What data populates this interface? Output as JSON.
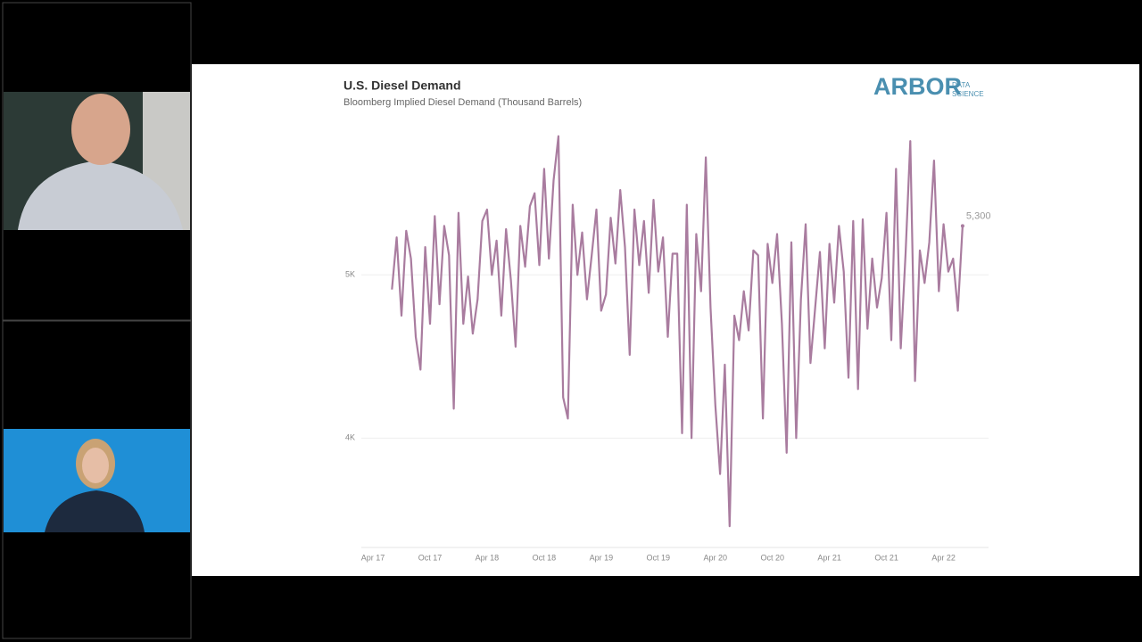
{
  "logo": {
    "name": "ARBOR",
    "line1": "DATA",
    "line2": "SCIENCE"
  },
  "chart_data": {
    "type": "line",
    "title": "U.S. Diesel Demand",
    "subtitle": "Bloomberg Implied Diesel Demand (Thousand Barrels)",
    "categories": [
      "Apr 17",
      null,
      null,
      null,
      null,
      null,
      null,
      null,
      null,
      null,
      null,
      null,
      "Oct 17",
      null,
      null,
      null,
      null,
      null,
      null,
      null,
      null,
      null,
      null,
      null,
      "Apr 18",
      null,
      null,
      null,
      null,
      null,
      null,
      null,
      null,
      null,
      null,
      null,
      "Oct 18",
      null,
      null,
      null,
      null,
      null,
      null,
      null,
      null,
      null,
      null,
      null,
      "Apr 19",
      null,
      null,
      null,
      null,
      null,
      null,
      null,
      null,
      null,
      null,
      null,
      "Oct 19",
      null,
      null,
      null,
      null,
      null,
      null,
      null,
      null,
      null,
      null,
      null,
      "Apr 20",
      null,
      null,
      null,
      null,
      null,
      null,
      null,
      null,
      null,
      null,
      null,
      "Oct 20",
      null,
      null,
      null,
      null,
      null,
      null,
      null,
      null,
      null,
      null,
      null,
      "Apr 21",
      null,
      null,
      null,
      null,
      null,
      null,
      null,
      null,
      null,
      null,
      null,
      "Oct 21",
      null,
      null,
      null,
      null,
      null,
      null,
      null,
      null,
      null,
      null,
      null,
      "Apr 22",
      null,
      null,
      null,
      null
    ],
    "series": [
      {
        "name": "Diesel Demand",
        "color": "#a97c9f",
        "values": [
          null,
          null,
          null,
          null,
          4910,
          5230,
          4750,
          5270,
          5100,
          4620,
          4420,
          5170,
          4700,
          5360,
          4820,
          5300,
          5120,
          4180,
          5380,
          4700,
          4990,
          4640,
          4850,
          5330,
          5400,
          5000,
          5210,
          4750,
          5280,
          4970,
          4560,
          5300,
          5050,
          5420,
          5500,
          5060,
          5650,
          5100,
          5580,
          5850,
          4250,
          4120,
          5430,
          5000,
          5260,
          4850,
          5120,
          5400,
          4780,
          4880,
          5350,
          5070,
          5520,
          5170,
          4510,
          5400,
          5060,
          5330,
          4890,
          5460,
          5020,
          5230,
          4620,
          5130,
          5130,
          4030,
          5430,
          4000,
          5250,
          4900,
          5720,
          4800,
          4200,
          3780,
          4450,
          3460,
          4750,
          4600,
          4900,
          4660,
          5150,
          5120,
          4120,
          5190,
          4950,
          5250,
          4700,
          3910,
          5200,
          4000,
          4850,
          5310,
          4460,
          4800,
          5140,
          4550,
          5190,
          4830,
          5300,
          5020,
          4370,
          5330,
          4300,
          5340,
          4670,
          5100,
          4800,
          4980,
          5380,
          4600,
          5650,
          4550,
          5130,
          5820,
          4350,
          5150,
          4950,
          5200,
          5700,
          4900,
          5310,
          5020,
          5100,
          4780,
          5300
        ]
      }
    ],
    "last_value_label": "5,300",
    "ylim": [
      3330,
      5870
    ],
    "yticks": [
      {
        "value": 4000,
        "label": "4K"
      },
      {
        "value": 5000,
        "label": "5K"
      }
    ],
    "grid": true
  }
}
